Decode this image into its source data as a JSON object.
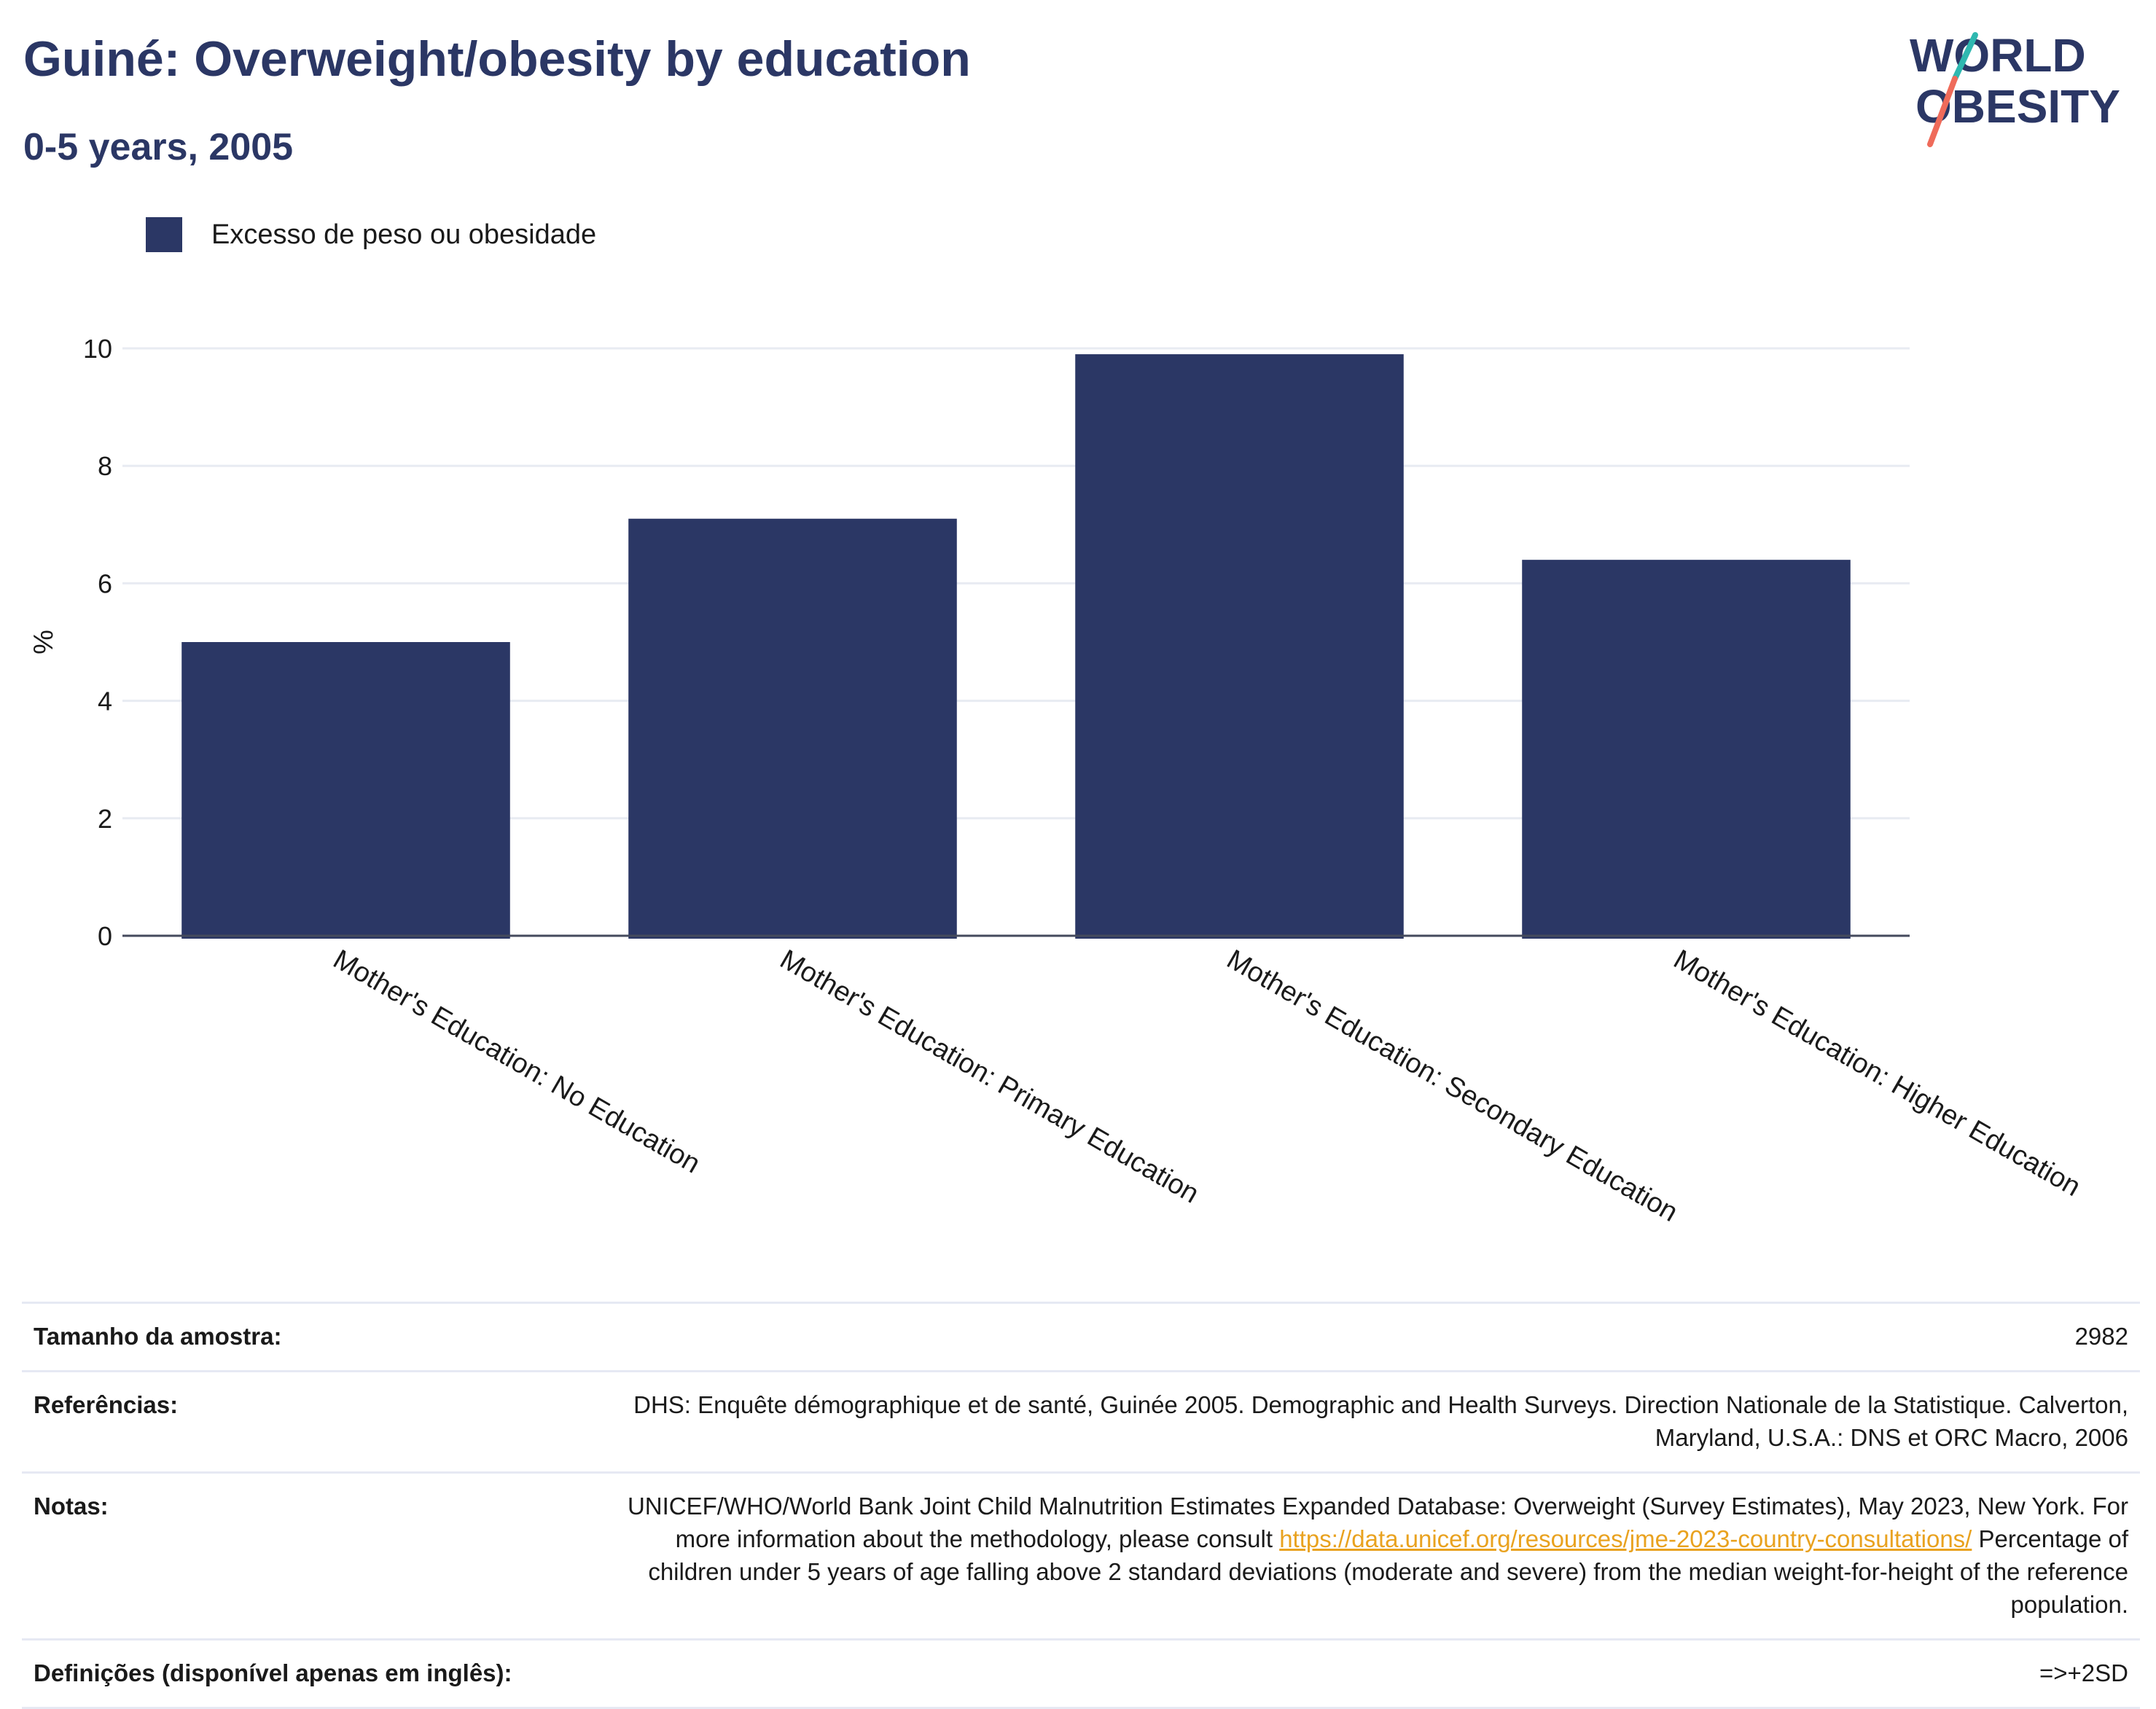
{
  "header": {
    "title": "Guiné: Overweight/obesity by education",
    "subtitle": "0-5 years, 2005"
  },
  "logo": {
    "line1": "WORLD",
    "line2": "OBESITY"
  },
  "legend": {
    "label": "Excesso de peso ou obesidade",
    "color": "#2b3765"
  },
  "chart_data": {
    "type": "bar",
    "categories": [
      "Mother's Education: No Education",
      "Mother's Education: Primary Education",
      "Mother's Education: Secondary Education",
      "Mother's Education: Higher Education"
    ],
    "series": [
      {
        "name": "Excesso de peso ou obesidade",
        "values": [
          5.0,
          7.1,
          9.9,
          6.4
        ],
        "color": "#2b3765"
      }
    ],
    "xlabel": "",
    "ylabel": "%",
    "ylim": [
      0,
      10
    ],
    "yticks": [
      0,
      2,
      4,
      6,
      8,
      10
    ],
    "grid": true,
    "legend_position": "top-left"
  },
  "footer": {
    "sample_label": "Tamanho da amostra:",
    "sample_value": "2982",
    "refs_label": "Referências:",
    "refs_value": "DHS: Enquête démographique et de santé, Guinée 2005. Demographic and Health Surveys. Direction Nationale de la Statistique. Calverton, Maryland, U.S.A.: DNS et ORC Macro, 2006",
    "notes_label": "Notas:",
    "notes_text1": "UNICEF/WHO/World Bank Joint Child Malnutrition Estimates Expanded Database: Overweight (Survey Estimates), May 2023, New York. For more information about the methodology, please consult ",
    "notes_link": "https://data.unicef.org/resources/jme-2023-country-consultations/",
    "notes_text2": " Percentage of children under 5 years of age falling above 2 standard deviations (moderate and severe) from the median weight-for-height of the reference population.",
    "defs_label": "Definições (disponível apenas em inglês):",
    "defs_value": "=>+2SD"
  }
}
